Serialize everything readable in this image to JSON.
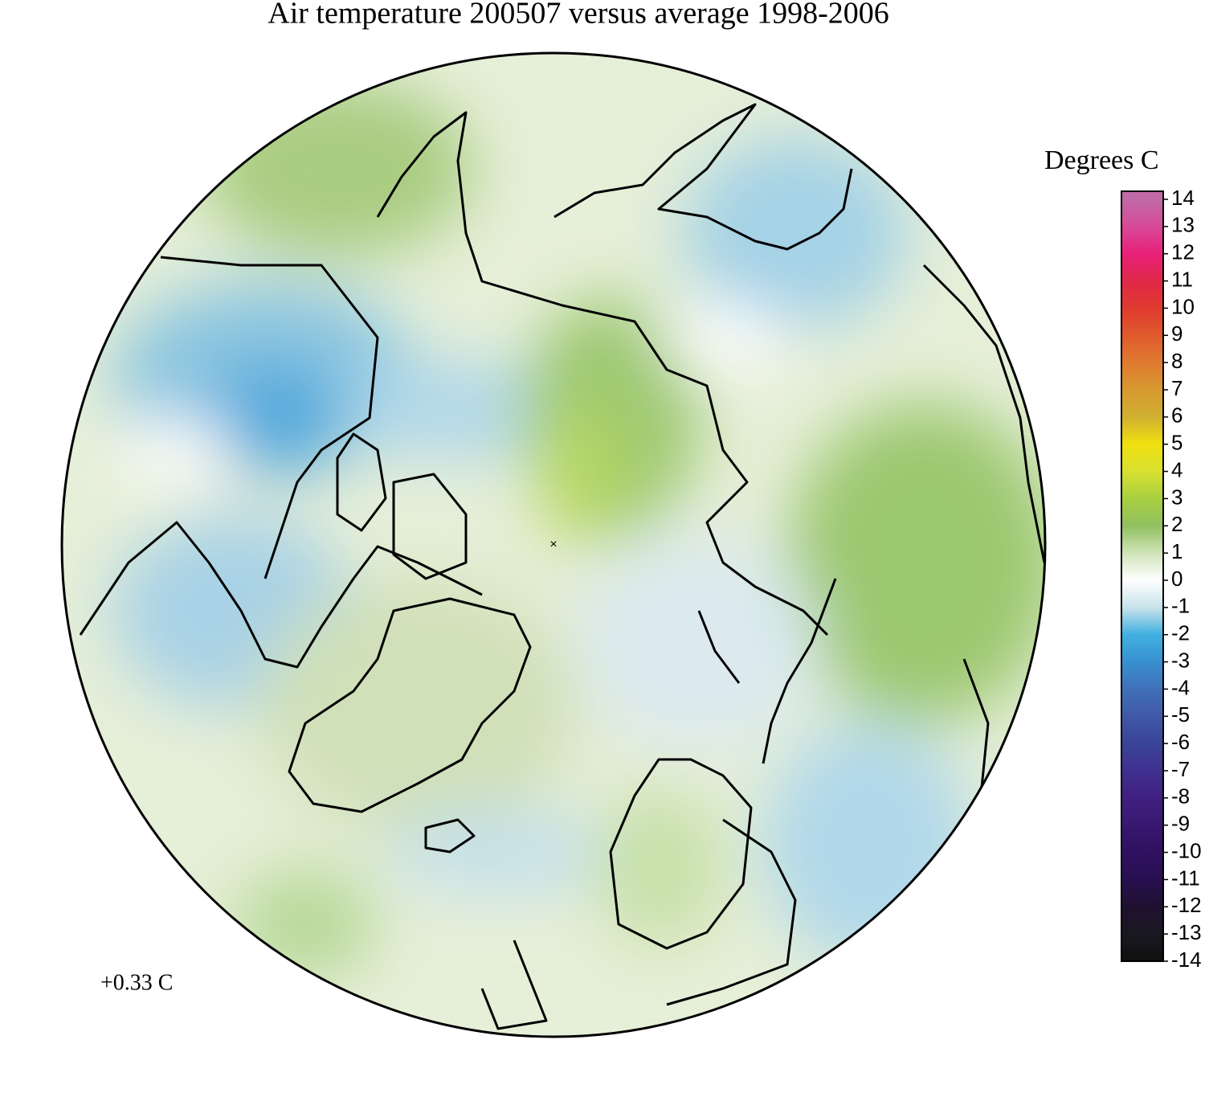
{
  "title": "Air temperature 200507 versus average 1998-2006",
  "annotation": "+0.33 C",
  "colorbar": {
    "title": "Degrees C",
    "range": [
      -14,
      14
    ],
    "ticks": [
      14,
      13,
      12,
      11,
      10,
      9,
      8,
      7,
      6,
      5,
      4,
      3,
      2,
      1,
      0,
      -1,
      -2,
      -3,
      -4,
      -5,
      -6,
      -7,
      -8,
      -9,
      -10,
      -11,
      -12,
      -13,
      -14
    ],
    "colors": [
      "#c06aa8",
      "#d84a98",
      "#e8207a",
      "#e02848",
      "#e03a30",
      "#e05a2c",
      "#e07a30",
      "#d89a30",
      "#d0b030",
      "#f0e010",
      "#d8e030",
      "#a8d040",
      "#90c060",
      "#d0e4b8",
      "#ffffff",
      "#c8e2ea",
      "#40b0e0",
      "#3890d0",
      "#4070b8",
      "#4058a8",
      "#3a4498",
      "#403090",
      "#402080",
      "#381870",
      "#301060",
      "#281050",
      "#201030",
      "#181820",
      "#101010"
    ]
  }
}
